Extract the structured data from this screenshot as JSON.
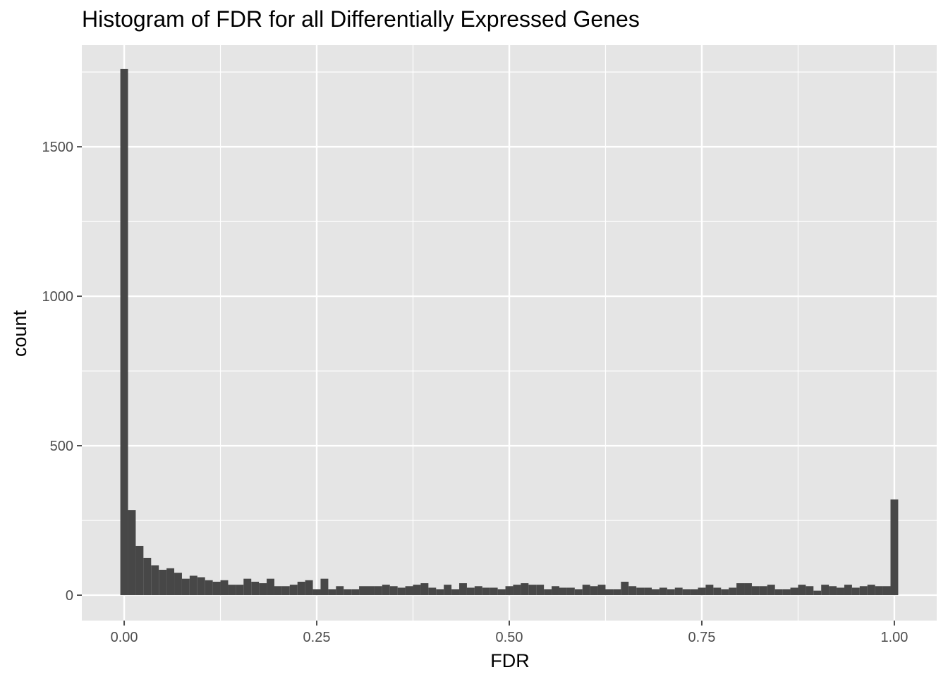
{
  "chart_data": {
    "type": "bar",
    "title": "Histogram of FDR for all Differentially Expressed Genes",
    "xlabel": "FDR",
    "ylabel": "count",
    "xlim": [
      -0.055,
      1.055
    ],
    "ylim": [
      -85,
      1840
    ],
    "x_ticks": [
      0.0,
      0.25,
      0.5,
      0.75,
      1.0
    ],
    "x_tick_labels": [
      "0.00",
      "0.25",
      "0.50",
      "0.75",
      "1.00"
    ],
    "y_ticks": [
      0,
      500,
      1000,
      1500
    ],
    "y_tick_labels": [
      "0",
      "500",
      "1000",
      "1500"
    ],
    "grid": true,
    "legend": "none",
    "colors": {
      "bar": "#474747",
      "panel": "#e5e5e5",
      "grid": "#ffffff",
      "tick": "#4d4d4d"
    },
    "bin_width": 0.01,
    "x": [
      0.0,
      0.01,
      0.02,
      0.03,
      0.04,
      0.05,
      0.06,
      0.07,
      0.08,
      0.09,
      0.1,
      0.11,
      0.12,
      0.13,
      0.14,
      0.15,
      0.16,
      0.17,
      0.18,
      0.19,
      0.2,
      0.21,
      0.22,
      0.23,
      0.24,
      0.25,
      0.26,
      0.27,
      0.28,
      0.29,
      0.3,
      0.31,
      0.32,
      0.33,
      0.34,
      0.35,
      0.36,
      0.37,
      0.38,
      0.39,
      0.4,
      0.41,
      0.42,
      0.43,
      0.44,
      0.45,
      0.46,
      0.47,
      0.48,
      0.49,
      0.5,
      0.51,
      0.52,
      0.53,
      0.54,
      0.55,
      0.56,
      0.57,
      0.58,
      0.59,
      0.6,
      0.61,
      0.62,
      0.63,
      0.64,
      0.65,
      0.66,
      0.67,
      0.68,
      0.69,
      0.7,
      0.71,
      0.72,
      0.73,
      0.74,
      0.75,
      0.76,
      0.77,
      0.78,
      0.79,
      0.8,
      0.81,
      0.82,
      0.83,
      0.84,
      0.85,
      0.86,
      0.87,
      0.88,
      0.89,
      0.9,
      0.91,
      0.92,
      0.93,
      0.94,
      0.95,
      0.96,
      0.97,
      0.98,
      0.99,
      1.0
    ],
    "values": [
      1760,
      285,
      165,
      125,
      100,
      85,
      90,
      75,
      55,
      65,
      60,
      50,
      45,
      50,
      35,
      35,
      55,
      45,
      40,
      55,
      30,
      30,
      35,
      45,
      50,
      20,
      55,
      20,
      30,
      20,
      20,
      30,
      30,
      30,
      35,
      30,
      25,
      30,
      35,
      40,
      25,
      20,
      35,
      20,
      40,
      25,
      30,
      25,
      25,
      20,
      30,
      35,
      40,
      35,
      35,
      20,
      30,
      25,
      25,
      20,
      35,
      30,
      35,
      20,
      20,
      45,
      30,
      25,
      25,
      20,
      25,
      20,
      25,
      20,
      20,
      25,
      35,
      25,
      20,
      25,
      40,
      40,
      30,
      30,
      35,
      20,
      20,
      25,
      35,
      30,
      15,
      35,
      30,
      25,
      35,
      25,
      30,
      35,
      30,
      30,
      320
    ]
  }
}
